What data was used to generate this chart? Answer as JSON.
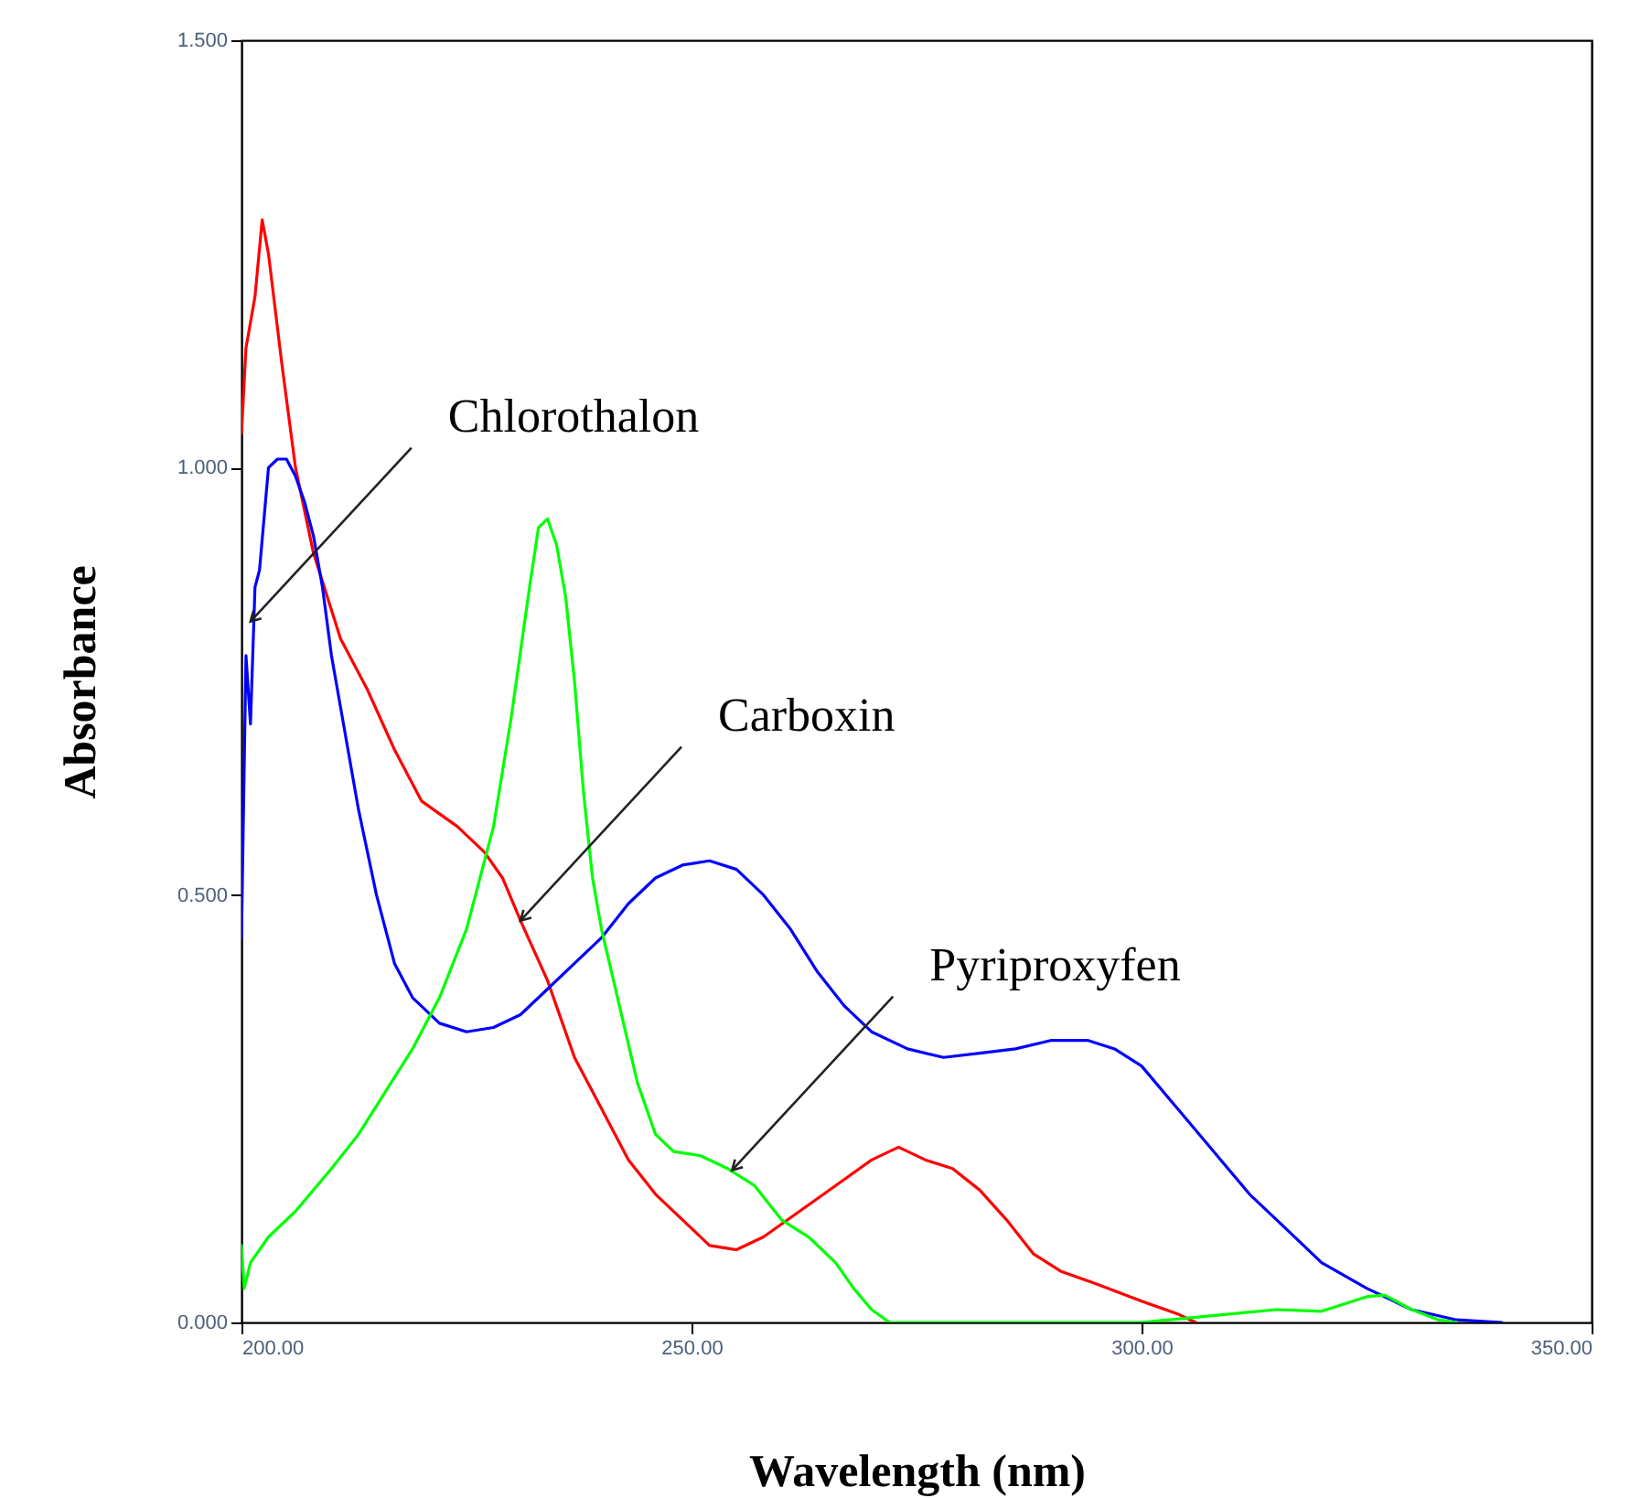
{
  "chart_data": {
    "type": "line",
    "xlabel": "Wavelength (nm)",
    "ylabel": "Absorbance",
    "xlim": [
      200,
      350
    ],
    "ylim": [
      0,
      1.5
    ],
    "xticks": [
      {
        "value": 200,
        "label": "200.00"
      },
      {
        "value": 250,
        "label": "250.00"
      },
      {
        "value": 300,
        "label": "300.00"
      },
      {
        "value": 350,
        "label": "350.00"
      }
    ],
    "yticks": [
      {
        "value": 0,
        "label": "0.000"
      },
      {
        "value": 0.5,
        "label": "0.500"
      },
      {
        "value": 1,
        "label": "1.000"
      },
      {
        "value": 1.5,
        "label": "1.500"
      }
    ],
    "grid": false,
    "legend": false,
    "line_style": "solid",
    "marker": "none",
    "series": [
      {
        "color": "#ff0000",
        "x": [
          200.0,
          200.5,
          201.5,
          202.3,
          203.0,
          204.5,
          206,
          208,
          211,
          214,
          217,
          220,
          224,
          227,
          229,
          231,
          234,
          237,
          240,
          243,
          246,
          249,
          252,
          255,
          258,
          262,
          266,
          270,
          273,
          276,
          279,
          282,
          285,
          288,
          291,
          295,
          300,
          304,
          306
        ],
        "values": [
          1.04,
          1.14,
          1.2,
          1.29,
          1.25,
          1.12,
          1.0,
          0.9,
          0.8,
          0.74,
          0.67,
          0.61,
          0.58,
          0.55,
          0.52,
          0.47,
          0.4,
          0.31,
          0.25,
          0.19,
          0.15,
          0.12,
          0.09,
          0.085,
          0.1,
          0.13,
          0.16,
          0.19,
          0.205,
          0.19,
          0.18,
          0.155,
          0.12,
          0.08,
          0.06,
          0.045,
          0.025,
          0.01,
          0.0
        ]
      },
      {
        "color": "#0000ff",
        "x": [
          200.0,
          200.5,
          201,
          201.5,
          202,
          203,
          204,
          205,
          206,
          207,
          208,
          209,
          210,
          211,
          213,
          215,
          217,
          219,
          222,
          225,
          228,
          231,
          234,
          237,
          240,
          243,
          246,
          249,
          252,
          255,
          258,
          261,
          264,
          267,
          270,
          274,
          278,
          282,
          286,
          290,
          294,
          297,
          300,
          304,
          308,
          312,
          316,
          320,
          325,
          330,
          335,
          340
        ],
        "values": [
          0.45,
          0.78,
          0.7,
          0.86,
          0.88,
          1.0,
          1.01,
          1.01,
          0.99,
          0.96,
          0.92,
          0.86,
          0.78,
          0.72,
          0.6,
          0.5,
          0.42,
          0.38,
          0.35,
          0.34,
          0.345,
          0.36,
          0.39,
          0.42,
          0.45,
          0.49,
          0.52,
          0.535,
          0.54,
          0.53,
          0.5,
          0.46,
          0.41,
          0.37,
          0.34,
          0.32,
          0.31,
          0.315,
          0.32,
          0.33,
          0.33,
          0.32,
          0.3,
          0.25,
          0.2,
          0.15,
          0.11,
          0.07,
          0.04,
          0.015,
          0.003,
          0.0
        ]
      },
      {
        "color": "#00ff00",
        "x": [
          200,
          200.3,
          201,
          203,
          206,
          210,
          213,
          216,
          219,
          222,
          225,
          228,
          230,
          232,
          233,
          234,
          235,
          236,
          237,
          238,
          239,
          240,
          242,
          244,
          246,
          248,
          251,
          254,
          257,
          260,
          263,
          266,
          268,
          270,
          272,
          300,
          305,
          310,
          315,
          320,
          325,
          327,
          330,
          333,
          335
        ],
        "values": [
          0.09,
          0.04,
          0.07,
          0.1,
          0.13,
          0.18,
          0.22,
          0.27,
          0.32,
          0.38,
          0.46,
          0.58,
          0.71,
          0.86,
          0.93,
          0.94,
          0.91,
          0.85,
          0.75,
          0.62,
          0.52,
          0.46,
          0.37,
          0.28,
          0.22,
          0.2,
          0.195,
          0.18,
          0.16,
          0.12,
          0.1,
          0.07,
          0.04,
          0.015,
          0.0,
          0.0,
          0.005,
          0.01,
          0.015,
          0.013,
          0.03,
          0.032,
          0.015,
          0.003,
          0.0
        ]
      }
    ],
    "annotations": [
      {
        "text": "Chlorothalon",
        "x": 201,
        "y": 0.82
      },
      {
        "text": "Carboxin",
        "x": 231,
        "y": 0.47
      },
      {
        "text": "Pyriproxyfen",
        "x": 254.5,
        "y": 0.178
      }
    ]
  }
}
